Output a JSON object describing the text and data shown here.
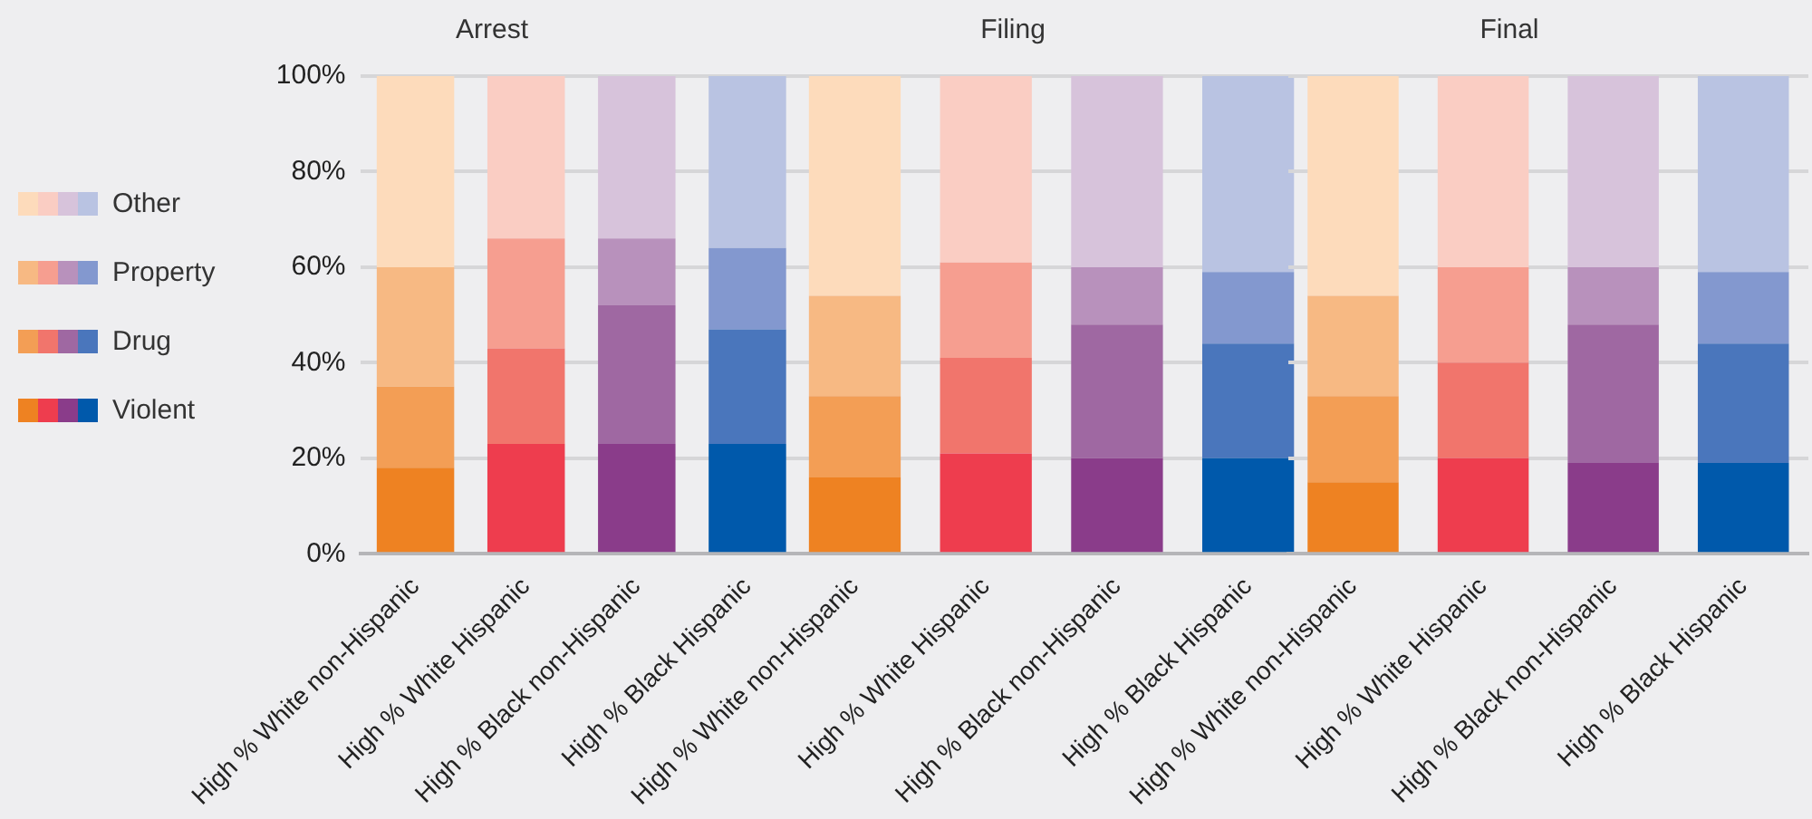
{
  "chart_data": [
    {
      "type": "bar",
      "title": "Arrest",
      "categories": [
        "High % White non-Hispanic",
        "High % White Hispanic",
        "High % Black non-Hispanic",
        "High % Black Hispanic"
      ],
      "stacked": true,
      "ylim": [
        0,
        100
      ],
      "yticks": [
        {
          "value": 0,
          "label": "0%"
        },
        {
          "value": 20,
          "label": "20%"
        },
        {
          "value": 40,
          "label": "40%"
        },
        {
          "value": 60,
          "label": "60%"
        },
        {
          "value": 80,
          "label": "80%"
        },
        {
          "value": 100,
          "label": "100%"
        }
      ],
      "grid": "y",
      "legend": "left",
      "series": [
        {
          "name": "Violent",
          "colors": [
            "#ee8222",
            "#ee3d4e",
            "#8a3c8a",
            "#0059ab"
          ],
          "values": [
            18,
            23,
            23,
            23
          ]
        },
        {
          "name": "Drug",
          "colors": [
            "#f39e55",
            "#f1756c",
            "#9f68a2",
            "#4a76bc"
          ],
          "values": [
            17,
            20,
            29,
            24
          ]
        },
        {
          "name": "Property",
          "colors": [
            "#f7b983",
            "#f69e90",
            "#b891bc",
            "#8398cf"
          ],
          "values": [
            25,
            23,
            14,
            17
          ]
        },
        {
          "name": "Other",
          "colors": [
            "#fddbbb",
            "#facdc3",
            "#d7c3db",
            "#b9c3e2"
          ],
          "values": [
            40,
            34,
            34,
            36
          ]
        }
      ]
    },
    {
      "type": "bar",
      "title": "Filing",
      "categories": [
        "High % White non-Hispanic",
        "High % White Hispanic",
        "High % Black non-Hispanic",
        "High % Black Hispanic"
      ],
      "stacked": true,
      "ylim": [
        0,
        100
      ],
      "yticks": [
        0,
        20,
        40,
        60,
        80,
        100
      ],
      "grid": "y",
      "tick_labels": "x",
      "series": [
        {
          "colors": [
            "#ee8222",
            "#ee3d4e",
            "#8a3c8a",
            "#0059ab"
          ],
          "values": [
            16,
            21,
            20,
            20
          ]
        },
        {
          "colors": [
            "#f39e55",
            "#f1756c",
            "#9f68a2",
            "#4a76bc"
          ],
          "values": [
            17,
            20,
            28,
            24
          ]
        },
        {
          "colors": [
            "#f7b983",
            "#f69e90",
            "#b891bc",
            "#8398cf"
          ],
          "values": [
            21,
            20,
            12,
            15
          ]
        },
        {
          "colors": [
            "#fddbbb",
            "#facdc3",
            "#d7c3db",
            "#b9c3e2"
          ],
          "values": [
            46,
            39,
            40,
            41
          ]
        }
      ]
    },
    {
      "type": "bar",
      "title": "Final",
      "categories": [
        "High % White non-Hispanic",
        "High % White Hispanic",
        "High % Black non-Hispanic",
        "High % Black Hispanic"
      ],
      "stacked": true,
      "ylim": [
        0,
        100
      ],
      "yticks": [
        0,
        20,
        40,
        60,
        80,
        100
      ],
      "grid": "y",
      "tick_labels": "x",
      "series": [
        {
          "colors": [
            "#ee8222",
            "#ee3d4e",
            "#8a3c8a",
            "#0059ab"
          ],
          "values": [
            15,
            20,
            19,
            19
          ]
        },
        {
          "colors": [
            "#f39e55",
            "#f1756c",
            "#9f68a2",
            "#4a76bc"
          ],
          "values": [
            18,
            20,
            29,
            25
          ]
        },
        {
          "colors": [
            "#f7b983",
            "#f69e90",
            "#b891bc",
            "#8398cf"
          ],
          "values": [
            21,
            20,
            12,
            15
          ]
        },
        {
          "colors": [
            "#fddbbb",
            "#facdc3",
            "#d7c3db",
            "#b9c3e2"
          ],
          "values": [
            46,
            40,
            40,
            41
          ]
        }
      ]
    }
  ]
}
